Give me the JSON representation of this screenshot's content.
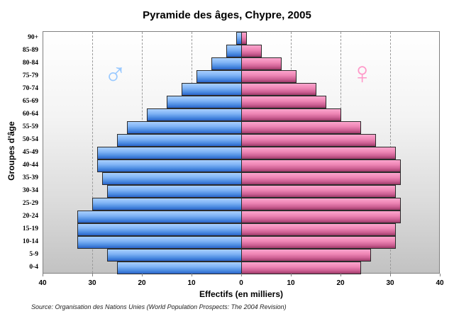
{
  "chart_data": {
    "type": "bar",
    "orientation": "horizontal-pyramid",
    "title": "Pyramide des âges, Chypre, 2005",
    "xlabel": "Effectifs (en milliers)",
    "ylabel": "Groupes d'âge",
    "xlim": [
      -40,
      40
    ],
    "xticks": [
      "40",
      "30",
      "20",
      "10",
      "0",
      "10",
      "20",
      "30",
      "40"
    ],
    "grid": "vertical dashed at 10-unit intervals",
    "legend": [
      {
        "name": "Hommes",
        "symbol": "♂",
        "color": "#99c9ff"
      },
      {
        "name": "Femmes",
        "symbol": "♀",
        "color": "#ff99c9"
      }
    ],
    "categories": [
      "90+",
      "85-89",
      "80-84",
      "75-79",
      "70-74",
      "65-69",
      "60-64",
      "55-59",
      "50-54",
      "45-49",
      "40-44",
      "35-39",
      "30-34",
      "25-29",
      "20-24",
      "15-19",
      "10-14",
      "5-9",
      "0-4"
    ],
    "series": [
      {
        "name": "Hommes",
        "color": "#4a8ae0",
        "values": [
          1,
          3,
          6,
          9,
          12,
          15,
          19,
          23,
          25,
          29,
          29,
          28,
          27,
          30,
          33,
          33,
          33,
          27,
          25
        ]
      },
      {
        "name": "Femmes",
        "color": "#cc5e92",
        "values": [
          1,
          4,
          8,
          11,
          15,
          17,
          20,
          24,
          27,
          31,
          32,
          32,
          31,
          32,
          32,
          31,
          31,
          26,
          24
        ]
      }
    ],
    "source": "Source: Organisation des Nations Unies (World Population Prospects: The 2004 Revision)"
  },
  "symbols": {
    "male": "♂",
    "female": "♀"
  }
}
